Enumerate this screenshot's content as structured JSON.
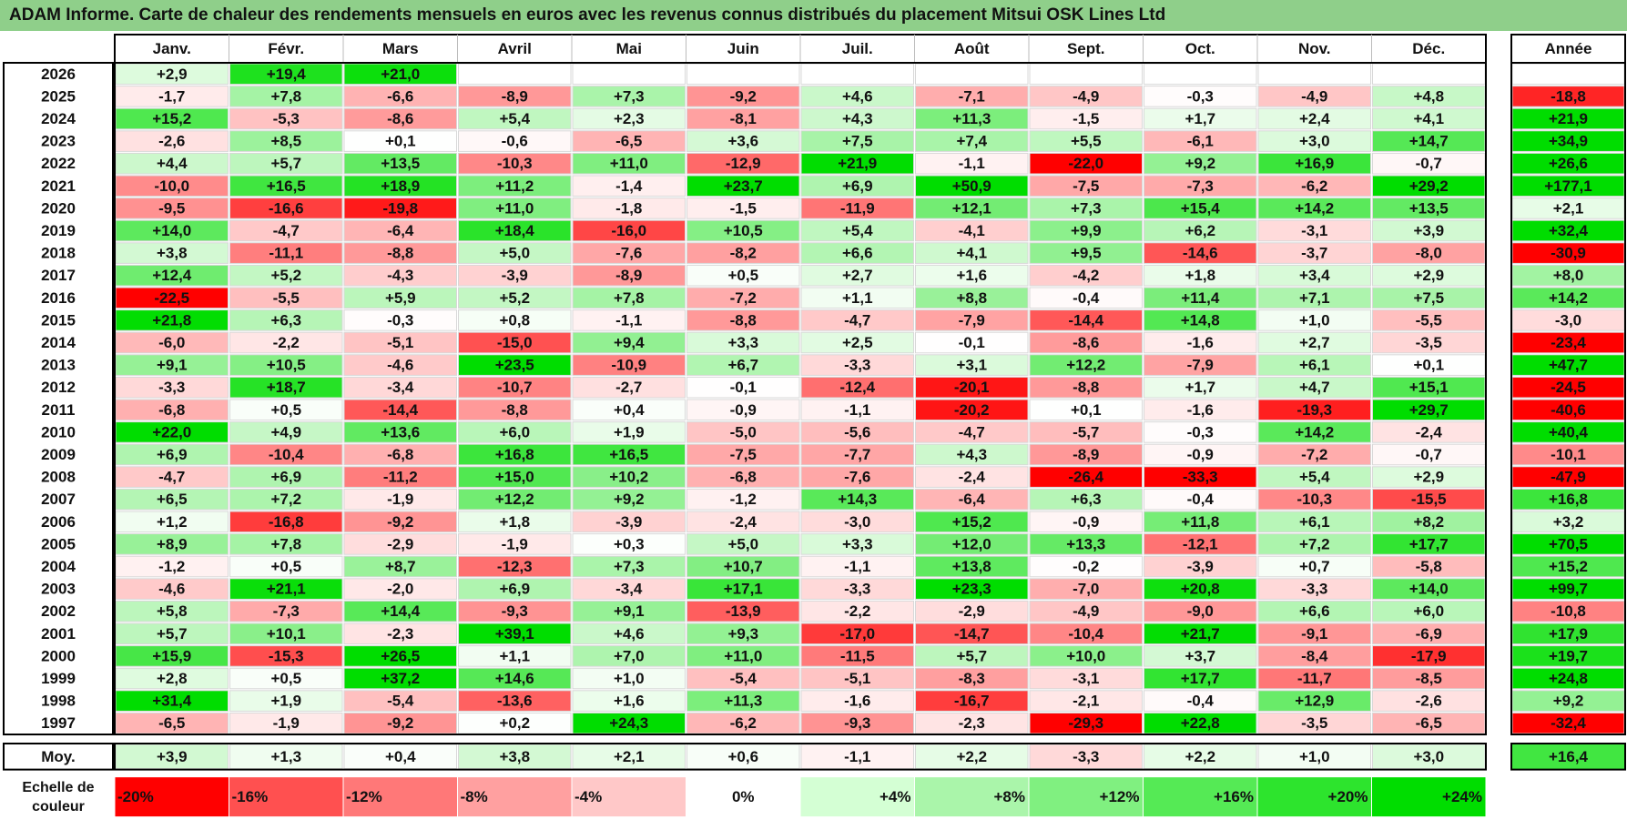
{
  "chart_data": {
    "type": "heatmap",
    "title": "ADAM Informe. Carte de chaleur des rendements mensuels en euros avec les revenus connus distribués du placement Mitsui OSK Lines Ltd",
    "columns": [
      "Janv.",
      "Févr.",
      "Mars",
      "Avril",
      "Mai",
      "Juin",
      "Juil.",
      "Août",
      "Sept.",
      "Oct.",
      "Nov.",
      "Déc."
    ],
    "year_header": "Année",
    "avg_label": "Moy.",
    "scale_label_line1": "Echelle de",
    "scale_label_line2": "couleur",
    "rows": [
      {
        "year": "2026",
        "values": [
          "+2,9",
          "+19,4",
          "+21,0",
          "",
          "",
          "",
          "",
          "",
          "",
          "",
          "",
          ""
        ],
        "annual": ""
      },
      {
        "year": "2025",
        "values": [
          "-1,7",
          "+7,8",
          "-6,6",
          "-8,9",
          "+7,3",
          "-9,2",
          "+4,6",
          "-7,1",
          "-4,9",
          "-0,3",
          "-4,9",
          "+4,8"
        ],
        "annual": "-18,8"
      },
      {
        "year": "2024",
        "values": [
          "+15,2",
          "-5,3",
          "-8,6",
          "+5,4",
          "+2,3",
          "-8,1",
          "+4,3",
          "+11,3",
          "-1,5",
          "+1,7",
          "+2,4",
          "+4,1"
        ],
        "annual": "+21,9"
      },
      {
        "year": "2023",
        "values": [
          "-2,6",
          "+8,5",
          "+0,1",
          "-0,6",
          "-6,5",
          "+3,6",
          "+7,5",
          "+7,4",
          "+5,5",
          "-6,1",
          "+3,0",
          "+14,7"
        ],
        "annual": "+34,9"
      },
      {
        "year": "2022",
        "values": [
          "+4,4",
          "+5,7",
          "+13,5",
          "-10,3",
          "+11,0",
          "-12,9",
          "+21,9",
          "-1,1",
          "-22,0",
          "+9,2",
          "+16,9",
          "-0,7"
        ],
        "annual": "+26,6"
      },
      {
        "year": "2021",
        "values": [
          "-10,0",
          "+16,5",
          "+18,9",
          "+11,2",
          "-1,4",
          "+23,7",
          "+6,9",
          "+50,9",
          "-7,5",
          "-7,3",
          "-6,2",
          "+29,2"
        ],
        "annual": "+177,1"
      },
      {
        "year": "2020",
        "values": [
          "-9,5",
          "-16,6",
          "-19,8",
          "+11,0",
          "-1,8",
          "-1,5",
          "-11,9",
          "+12,1",
          "+7,3",
          "+15,4",
          "+14,2",
          "+13,5"
        ],
        "annual": "+2,1"
      },
      {
        "year": "2019",
        "values": [
          "+14,0",
          "-4,7",
          "-6,4",
          "+18,4",
          "-16,0",
          "+10,5",
          "+5,4",
          "-4,1",
          "+9,9",
          "+6,2",
          "-3,1",
          "+3,9"
        ],
        "annual": "+32,4"
      },
      {
        "year": "2018",
        "values": [
          "+3,8",
          "-11,1",
          "-8,8",
          "+5,0",
          "-7,6",
          "-8,2",
          "+6,6",
          "+4,1",
          "+9,5",
          "-14,6",
          "-3,7",
          "-8,0"
        ],
        "annual": "-30,9"
      },
      {
        "year": "2017",
        "values": [
          "+12,4",
          "+5,2",
          "-4,3",
          "-3,9",
          "-8,9",
          "+0,5",
          "+2,7",
          "+1,6",
          "-4,2",
          "+1,8",
          "+3,4",
          "+2,9"
        ],
        "annual": "+8,0"
      },
      {
        "year": "2016",
        "values": [
          "-22,5",
          "-5,5",
          "+5,9",
          "+5,2",
          "+7,8",
          "-7,2",
          "+1,1",
          "+8,8",
          "-0,4",
          "+11,4",
          "+7,1",
          "+7,5"
        ],
        "annual": "+14,2"
      },
      {
        "year": "2015",
        "values": [
          "+21,8",
          "+6,3",
          "-0,3",
          "+0,8",
          "-1,1",
          "-8,8",
          "-4,7",
          "-7,9",
          "-14,4",
          "+14,8",
          "+1,0",
          "-5,5"
        ],
        "annual": "-3,0"
      },
      {
        "year": "2014",
        "values": [
          "-6,0",
          "-2,2",
          "-5,1",
          "-15,0",
          "+9,4",
          "+3,3",
          "+2,5",
          "-0,1",
          "-8,6",
          "-1,6",
          "+2,7",
          "-3,5"
        ],
        "annual": "-23,4"
      },
      {
        "year": "2013",
        "values": [
          "+9,1",
          "+10,5",
          "-4,6",
          "+23,5",
          "-10,9",
          "+6,7",
          "-3,3",
          "+3,1",
          "+12,2",
          "-7,9",
          "+6,1",
          "+0,1"
        ],
        "annual": "+47,7"
      },
      {
        "year": "2012",
        "values": [
          "-3,3",
          "+18,7",
          "-3,4",
          "-10,7",
          "-2,7",
          "-0,1",
          "-12,4",
          "-20,1",
          "-8,8",
          "+1,7",
          "+4,7",
          "+15,1"
        ],
        "annual": "-24,5"
      },
      {
        "year": "2011",
        "values": [
          "-6,8",
          "+0,5",
          "-14,4",
          "-8,8",
          "+0,4",
          "-0,9",
          "-1,1",
          "-20,2",
          "+0,1",
          "-1,6",
          "-19,3",
          "+29,7"
        ],
        "annual": "-40,6"
      },
      {
        "year": "2010",
        "values": [
          "+22,0",
          "+4,9",
          "+13,6",
          "+6,0",
          "+1,9",
          "-5,0",
          "-5,6",
          "-4,7",
          "-5,7",
          "-0,3",
          "+14,2",
          "-2,4"
        ],
        "annual": "+40,4"
      },
      {
        "year": "2009",
        "values": [
          "+6,9",
          "-10,4",
          "-6,8",
          "+16,8",
          "+16,5",
          "-7,5",
          "-7,7",
          "+4,3",
          "-8,9",
          "-0,9",
          "-7,2",
          "-0,7"
        ],
        "annual": "-10,1"
      },
      {
        "year": "2008",
        "values": [
          "-4,7",
          "+6,9",
          "-11,2",
          "+15,0",
          "+10,2",
          "-6,8",
          "-7,6",
          "-2,4",
          "-26,4",
          "-33,3",
          "+5,4",
          "+2,9"
        ],
        "annual": "-47,9"
      },
      {
        "year": "2007",
        "values": [
          "+6,5",
          "+7,2",
          "-1,9",
          "+12,2",
          "+9,2",
          "-1,2",
          "+14,3",
          "-6,4",
          "+6,3",
          "-0,4",
          "-10,3",
          "-15,5"
        ],
        "annual": "+16,8"
      },
      {
        "year": "2006",
        "values": [
          "+1,2",
          "-16,8",
          "-9,2",
          "+1,8",
          "-3,9",
          "-2,4",
          "-3,0",
          "+15,2",
          "-0,9",
          "+11,8",
          "+6,1",
          "+8,2"
        ],
        "annual": "+3,2"
      },
      {
        "year": "2005",
        "values": [
          "+8,9",
          "+7,8",
          "-2,9",
          "-1,9",
          "+0,3",
          "+5,0",
          "+3,3",
          "+12,0",
          "+13,3",
          "-12,1",
          "+7,2",
          "+17,7"
        ],
        "annual": "+70,5"
      },
      {
        "year": "2004",
        "values": [
          "-1,2",
          "+0,5",
          "+8,7",
          "-12,3",
          "+7,3",
          "+10,7",
          "-1,1",
          "+13,8",
          "-0,2",
          "-3,9",
          "+0,7",
          "-5,8"
        ],
        "annual": "+15,2"
      },
      {
        "year": "2003",
        "values": [
          "-4,6",
          "+21,1",
          "-2,0",
          "+6,9",
          "-3,4",
          "+17,1",
          "-3,3",
          "+23,3",
          "-7,0",
          "+20,8",
          "-3,3",
          "+14,0"
        ],
        "annual": "+99,7"
      },
      {
        "year": "2002",
        "values": [
          "+5,8",
          "-7,3",
          "+14,4",
          "-9,3",
          "+9,1",
          "-13,9",
          "-2,2",
          "-2,9",
          "-4,9",
          "-9,0",
          "+6,6",
          "+6,0"
        ],
        "annual": "-10,8"
      },
      {
        "year": "2001",
        "values": [
          "+5,7",
          "+10,1",
          "-2,3",
          "+39,1",
          "+4,6",
          "+9,3",
          "-17,0",
          "-14,7",
          "-10,4",
          "+21,7",
          "-9,1",
          "-6,9"
        ],
        "annual": "+17,9"
      },
      {
        "year": "2000",
        "values": [
          "+15,9",
          "-15,3",
          "+26,5",
          "+1,1",
          "+7,0",
          "+11,0",
          "-11,5",
          "+5,7",
          "+10,0",
          "+3,7",
          "-8,4",
          "-17,9"
        ],
        "annual": "+19,7"
      },
      {
        "year": "1999",
        "values": [
          "+2,8",
          "+0,5",
          "+37,2",
          "+14,6",
          "+1,0",
          "-5,4",
          "-5,1",
          "-8,3",
          "-3,1",
          "+17,7",
          "-11,7",
          "-8,5"
        ],
        "annual": "+24,8"
      },
      {
        "year": "1998",
        "values": [
          "+31,4",
          "+1,9",
          "-5,4",
          "-13,6",
          "+1,6",
          "+11,3",
          "-1,6",
          "-16,7",
          "-2,1",
          "-0,4",
          "+12,9",
          "-2,6"
        ],
        "annual": "+9,2"
      },
      {
        "year": "1997",
        "values": [
          "-6,5",
          "-1,9",
          "-9,2",
          "+0,2",
          "+24,3",
          "-6,2",
          "-9,3",
          "-2,3",
          "-29,3",
          "+22,8",
          "-3,5",
          "-6,5"
        ],
        "annual": "-32,4"
      }
    ],
    "average": {
      "values": [
        "+3,9",
        "+1,3",
        "+0,4",
        "+3,8",
        "+2,1",
        "+0,6",
        "-1,1",
        "+2,2",
        "-3,3",
        "+2,2",
        "+1,0",
        "+3,0"
      ],
      "annual": "+16,4"
    },
    "scale": [
      "-20%",
      "-16%",
      "-12%",
      "-8%",
      "-4%",
      "0%",
      "+4%",
      "+8%",
      "+12%",
      "+16%",
      "+20%",
      "+24%"
    ],
    "scale_colors": [
      "#ff0000",
      "#ff5050",
      "#ff7878",
      "#ffa0a0",
      "#ffc8c8",
      "#ffffff",
      "#d4ffd4",
      "#aaf5aa",
      "#80f080",
      "#55ea55",
      "#2de42d",
      "#00dd00"
    ]
  }
}
